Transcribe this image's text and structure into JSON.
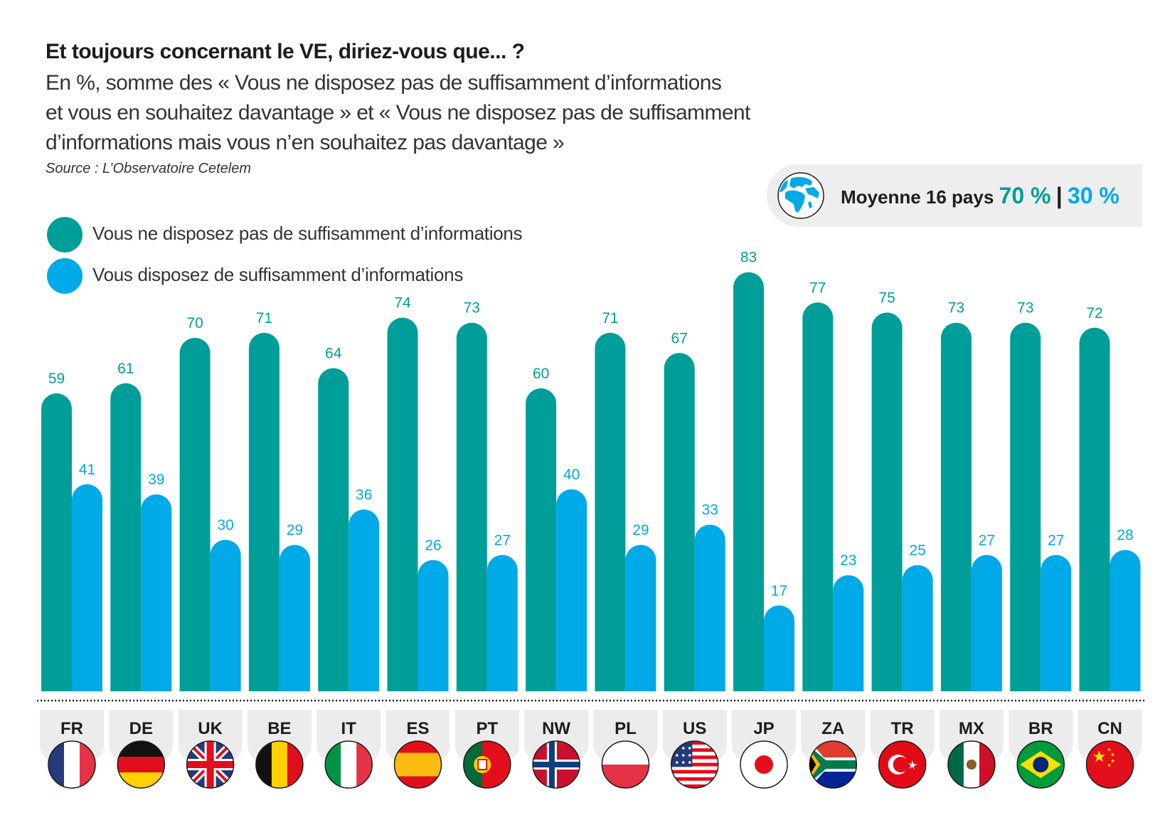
{
  "header": {
    "title": "Et toujours concernant le VE, diriez-vous que... ?",
    "subtitle_lines": [
      "En %, somme des « Vous ne disposez pas de suffisamment d’informations",
      "et vous en souhaitez davantage » et « Vous ne disposez pas de suffisamment",
      "d’informations mais vous n’en souhaitez pas davantage »"
    ],
    "source": "Source : L’Observatoire Cetelem"
  },
  "average": {
    "icon": "globe-icon",
    "label": "Moyenne 16 pays",
    "value_1": "70 %",
    "separator": "|",
    "value_2": "30 %"
  },
  "legend": [
    {
      "label": "Vous ne disposez pas de suffisamment d’informations",
      "color": "#009e99"
    },
    {
      "label": "Vous disposez de suffisamment d’informations",
      "color": "#00a9e7"
    }
  ],
  "chart_data": {
    "type": "bar",
    "title": "Et toujours concernant le VE, diriez-vous que... ?",
    "xlabel": "",
    "ylabel": "%",
    "ylim": [
      0,
      100
    ],
    "grid": false,
    "legend_position": "top-left",
    "categories": [
      "FR",
      "DE",
      "UK",
      "BE",
      "IT",
      "ES",
      "PT",
      "NW",
      "PL",
      "US",
      "JP",
      "ZA",
      "TR",
      "MX",
      "BR",
      "CN"
    ],
    "series": [
      {
        "name": "Vous ne disposez pas de suffisamment d’informations",
        "color": "#009e99",
        "values": [
          59,
          61,
          70,
          71,
          64,
          74,
          73,
          60,
          71,
          67,
          83,
          77,
          75,
          73,
          73,
          72
        ]
      },
      {
        "name": "Vous disposez de suffisamment d’informations",
        "color": "#00a9e7",
        "values": [
          41,
          39,
          30,
          29,
          36,
          26,
          27,
          40,
          29,
          33,
          17,
          23,
          25,
          27,
          27,
          28
        ]
      }
    ],
    "average": {
      "label": "Moyenne 16 pays",
      "values": [
        70,
        30
      ]
    }
  },
  "flags": [
    "france-flag-icon",
    "germany-flag-icon",
    "uk-flag-icon",
    "belgium-flag-icon",
    "italy-flag-icon",
    "spain-flag-icon",
    "portugal-flag-icon",
    "norway-flag-icon",
    "poland-flag-icon",
    "usa-flag-icon",
    "japan-flag-icon",
    "south-africa-flag-icon",
    "turkey-flag-icon",
    "mexico-flag-icon",
    "brazil-flag-icon",
    "china-flag-icon"
  ]
}
